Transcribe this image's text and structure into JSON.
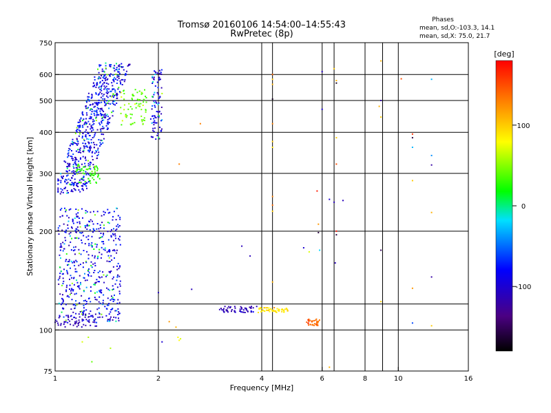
{
  "chart_data": {
    "type": "scatter",
    "title": "Tromsø 20160106 14:54:00–14:55:43",
    "subtitle": "RwPretec (8p)",
    "xlabel": "Frequency [MHz]",
    "ylabel": "Stationary phase Virtual Height [km]",
    "x_scale": "log",
    "y_scale": "log",
    "xlim": [
      1,
      16
    ],
    "ylim": [
      75,
      750
    ],
    "x_ticks": [
      1,
      2,
      4,
      6,
      8,
      10,
      16
    ],
    "x_tick_labels": [
      "1",
      "2",
      "4",
      "6",
      "8",
      "10",
      "16"
    ],
    "x_gridlines": [
      2,
      4,
      4.3,
      6,
      6.5,
      8,
      9,
      10
    ],
    "y_ticks": [
      75,
      100,
      200,
      300,
      400,
      500,
      600,
      750
    ],
    "y_tick_labels": [
      "75",
      "100",
      "200",
      "300",
      "400",
      "500",
      "600",
      "750"
    ],
    "y_gridlines": [
      100,
      120,
      200,
      300,
      400,
      500,
      600
    ],
    "stats": {
      "header": "Phases",
      "line_o": "mean, sd,O:-103.3, 14.1",
      "line_x": "mean, sd,X:  75.0, 21.7"
    },
    "colorbar": {
      "label": "[deg]",
      "range": [
        -180,
        180
      ],
      "ticks": [
        100,
        0,
        -100
      ],
      "tick_labels": [
        "100",
        "0",
        "-100"
      ],
      "colormap": "black-purple-blue-cyan-green-yellow-orange-red"
    },
    "clusters": [
      {
        "x": [
          1.02,
          1.65
        ],
        "y": [
          260,
          650
        ],
        "n": 650,
        "phase": [
          -120,
          60
        ]
      },
      {
        "x": [
          1.55,
          1.85
        ],
        "y": [
          420,
          540
        ],
        "n": 70,
        "phase": [
          30,
          80
        ]
      },
      {
        "x": [
          1.15,
          1.35
        ],
        "y": [
          280,
          320
        ],
        "n": 60,
        "phase": [
          20,
          60
        ]
      },
      {
        "x": [
          1.02,
          1.55
        ],
        "y": [
          105,
          235
        ],
        "n": 520,
        "phase": [
          -120,
          60
        ]
      },
      {
        "x": [
          1.0,
          1.35
        ],
        "y": [
          102,
          112
        ],
        "n": 60,
        "phase": [
          -120,
          -80
        ]
      },
      {
        "x": [
          1.9,
          2.05
        ],
        "y": [
          380,
          620
        ],
        "n": 90,
        "phase": [
          -120,
          20
        ]
      },
      {
        "x": [
          3.0,
          3.9
        ],
        "y": [
          113,
          118
        ],
        "n": 55,
        "phase": [
          -120,
          -80
        ]
      },
      {
        "x": [
          3.9,
          4.8
        ],
        "y": [
          113,
          117
        ],
        "n": 55,
        "phase": [
          80,
          140
        ]
      },
      {
        "x": [
          5.4,
          5.9
        ],
        "y": [
          103,
          108
        ],
        "n": 35,
        "phase": [
          130,
          180
        ]
      }
    ],
    "points": [
      {
        "x": 1.3,
        "y": 360,
        "phase": -110
      },
      {
        "x": 1.28,
        "y": 80,
        "phase": 40
      },
      {
        "x": 1.2,
        "y": 92,
        "phase": 70
      },
      {
        "x": 1.25,
        "y": 95,
        "phase": 60
      },
      {
        "x": 1.45,
        "y": 88,
        "phase": 60
      },
      {
        "x": 2.05,
        "y": 92,
        "phase": -100
      },
      {
        "x": 2.28,
        "y": 95,
        "phase": 80
      },
      {
        "x": 2.3,
        "y": 93,
        "phase": 80
      },
      {
        "x": 2.32,
        "y": 94,
        "phase": 70
      },
      {
        "x": 2.25,
        "y": 102,
        "phase": 110
      },
      {
        "x": 2.15,
        "y": 106,
        "phase": 120
      },
      {
        "x": 2.0,
        "y": 130,
        "phase": -110
      },
      {
        "x": 2.5,
        "y": 133,
        "phase": -110
      },
      {
        "x": 2.3,
        "y": 320,
        "phase": 130
      },
      {
        "x": 2.65,
        "y": 425,
        "phase": 130
      },
      {
        "x": 2.05,
        "y": 525,
        "phase": 60
      },
      {
        "x": 3.5,
        "y": 180,
        "phase": -110
      },
      {
        "x": 3.7,
        "y": 168,
        "phase": -110
      },
      {
        "x": 4.3,
        "y": 600,
        "phase": 140
      },
      {
        "x": 4.3,
        "y": 580,
        "phase": 100
      },
      {
        "x": 4.3,
        "y": 560,
        "phase": 110
      },
      {
        "x": 4.3,
        "y": 505,
        "phase": -170
      },
      {
        "x": 4.3,
        "y": 425,
        "phase": 130
      },
      {
        "x": 4.3,
        "y": 375,
        "phase": 100
      },
      {
        "x": 4.3,
        "y": 360,
        "phase": 90
      },
      {
        "x": 4.3,
        "y": 255,
        "phase": 130
      },
      {
        "x": 4.3,
        "y": 240,
        "phase": 140
      },
      {
        "x": 4.3,
        "y": 230,
        "phase": 100
      },
      {
        "x": 4.3,
        "y": 140,
        "phase": 110
      },
      {
        "x": 5.3,
        "y": 178,
        "phase": -100
      },
      {
        "x": 5.5,
        "y": 173,
        "phase": 70
      },
      {
        "x": 5.85,
        "y": 198,
        "phase": -160
      },
      {
        "x": 5.9,
        "y": 175,
        "phase": -20
      },
      {
        "x": 5.85,
        "y": 210,
        "phase": 120
      },
      {
        "x": 5.8,
        "y": 265,
        "phase": 170
      },
      {
        "x": 6.0,
        "y": 612,
        "phase": -110
      },
      {
        "x": 6.0,
        "y": 470,
        "phase": -100
      },
      {
        "x": 6.3,
        "y": 250,
        "phase": -100
      },
      {
        "x": 6.5,
        "y": 245,
        "phase": -110
      },
      {
        "x": 6.9,
        "y": 248,
        "phase": -110
      },
      {
        "x": 6.6,
        "y": 320,
        "phase": 150
      },
      {
        "x": 6.6,
        "y": 385,
        "phase": 100
      },
      {
        "x": 6.6,
        "y": 565,
        "phase": -170
      },
      {
        "x": 6.6,
        "y": 575,
        "phase": 110
      },
      {
        "x": 6.5,
        "y": 625,
        "phase": 100
      },
      {
        "x": 6.6,
        "y": 200,
        "phase": 170
      },
      {
        "x": 6.6,
        "y": 195,
        "phase": -160
      },
      {
        "x": 6.55,
        "y": 160,
        "phase": -110
      },
      {
        "x": 6.3,
        "y": 77,
        "phase": 110
      },
      {
        "x": 8.9,
        "y": 660,
        "phase": 110
      },
      {
        "x": 8.9,
        "y": 500,
        "phase": -120
      },
      {
        "x": 8.8,
        "y": 480,
        "phase": 110
      },
      {
        "x": 8.9,
        "y": 445,
        "phase": 100
      },
      {
        "x": 8.9,
        "y": 175,
        "phase": -150
      },
      {
        "x": 8.9,
        "y": 122,
        "phase": 100
      },
      {
        "x": 10.2,
        "y": 582,
        "phase": 150
      },
      {
        "x": 11.0,
        "y": 395,
        "phase": 160
      },
      {
        "x": 11.0,
        "y": 385,
        "phase": -160
      },
      {
        "x": 11.0,
        "y": 360,
        "phase": -30
      },
      {
        "x": 11.0,
        "y": 285,
        "phase": 100
      },
      {
        "x": 11.0,
        "y": 134,
        "phase": 120
      },
      {
        "x": 11.0,
        "y": 105,
        "phase": -60
      },
      {
        "x": 12.5,
        "y": 580,
        "phase": -30
      },
      {
        "x": 12.5,
        "y": 340,
        "phase": -40
      },
      {
        "x": 12.5,
        "y": 318,
        "phase": -120
      },
      {
        "x": 12.5,
        "y": 228,
        "phase": 110
      },
      {
        "x": 12.5,
        "y": 145,
        "phase": -120
      },
      {
        "x": 12.5,
        "y": 103,
        "phase": 100
      }
    ]
  }
}
